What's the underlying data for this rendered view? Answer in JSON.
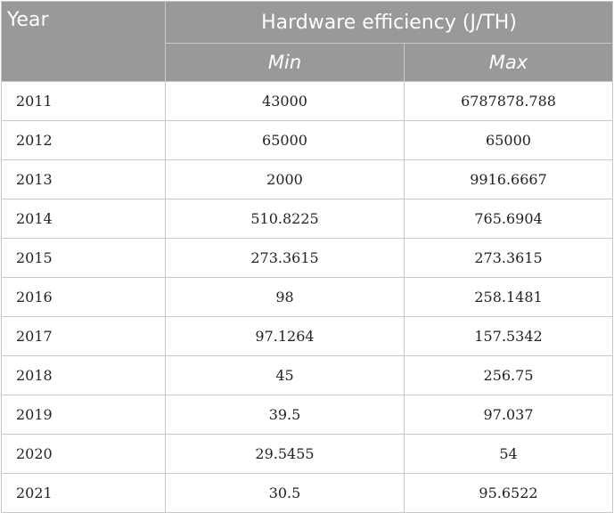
{
  "table": {
    "header": {
      "year": "Year",
      "group": "Hardware efficiency (J/TH)",
      "min": "Min",
      "max": "Max"
    },
    "rows": [
      {
        "year": "2011",
        "min": "43000",
        "max": "6787878.788"
      },
      {
        "year": "2012",
        "min": "65000",
        "max": "65000"
      },
      {
        "year": "2013",
        "min": "2000",
        "max": "9916.6667"
      },
      {
        "year": "2014",
        "min": "510.8225",
        "max": "765.6904"
      },
      {
        "year": "2015",
        "min": "273.3615",
        "max": "273.3615"
      },
      {
        "year": "2016",
        "min": "98",
        "max": "258.1481"
      },
      {
        "year": "2017",
        "min": "97.1264",
        "max": "157.5342"
      },
      {
        "year": "2018",
        "min": "45",
        "max": "256.75"
      },
      {
        "year": "2019",
        "min": "39.5",
        "max": "97.037"
      },
      {
        "year": "2020",
        "min": "29.5455",
        "max": "54"
      },
      {
        "year": "2021",
        "min": "30.5",
        "max": "95.6522"
      }
    ]
  }
}
